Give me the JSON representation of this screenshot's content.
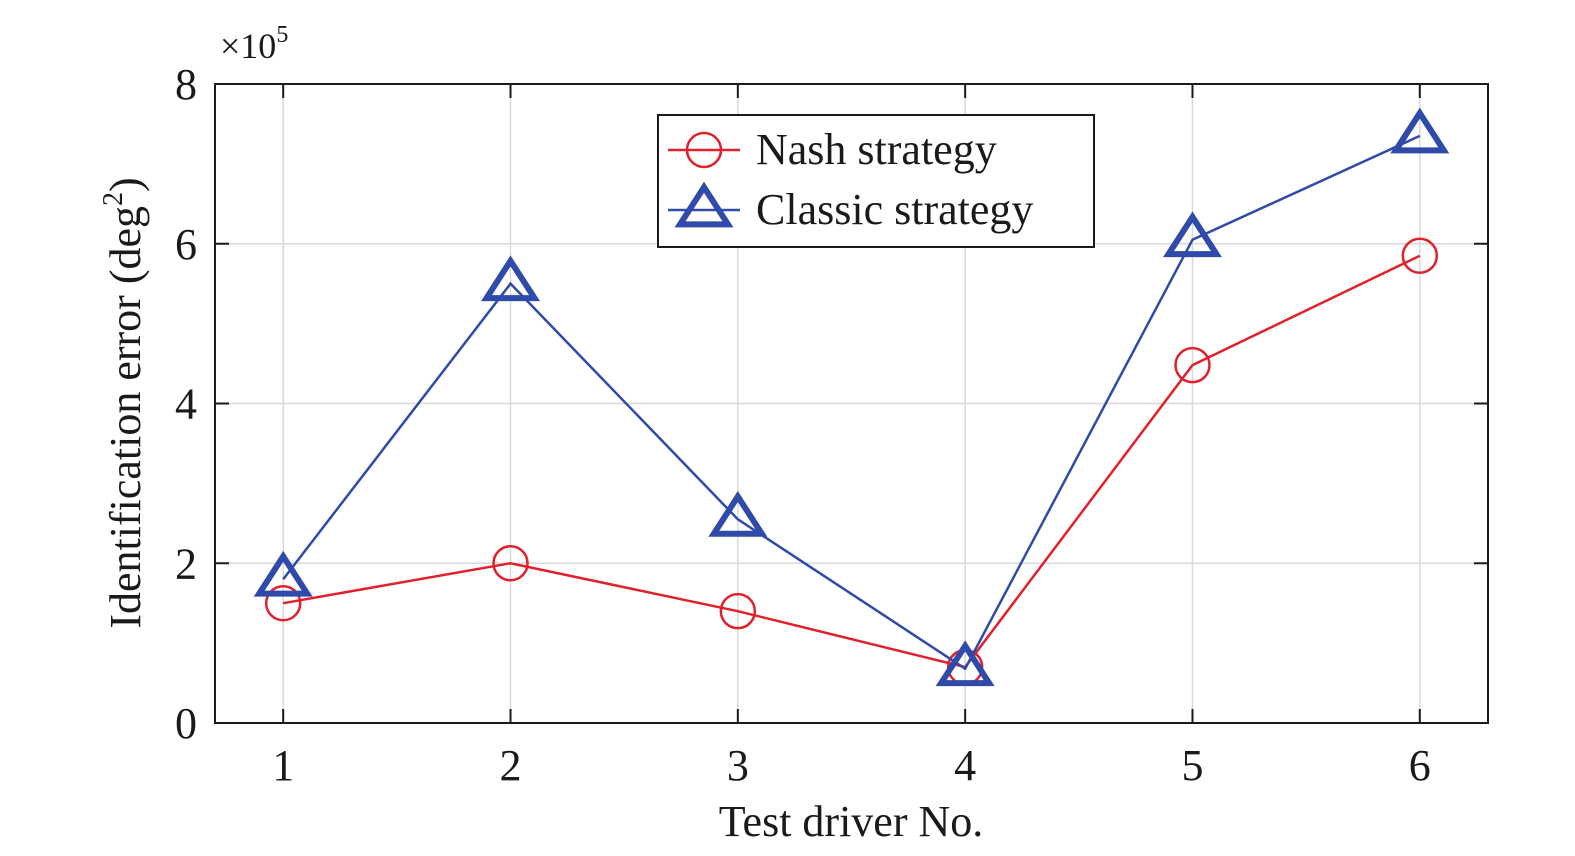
{
  "chart_data": {
    "type": "line",
    "title": "",
    "xlabel": "Test driver No.",
    "ylabel_main": "Identification error (deg",
    "ylabel_sup": "2",
    "ylabel_close": ")",
    "y_multiplier_base": "×10",
    "y_multiplier_exp": "5",
    "x": [
      1,
      2,
      3,
      4,
      5,
      6
    ],
    "x_tick_labels": [
      "1",
      "2",
      "3",
      "4",
      "5",
      "6"
    ],
    "y_ticks": [
      0,
      2,
      4,
      6,
      8
    ],
    "y_tick_labels": [
      "0",
      "2",
      "4",
      "6",
      "8"
    ],
    "xlim": [
      0.7,
      6.3
    ],
    "ylim": [
      0,
      8
    ],
    "grid": true,
    "legend_position": "top-right",
    "series": [
      {
        "name": "Nash strategy",
        "values": [
          1.5,
          2.0,
          1.4,
          0.7,
          4.48,
          5.85
        ],
        "color": "#e0202a",
        "marker": "circle"
      },
      {
        "name": "Classic strategy",
        "values": [
          1.8,
          5.5,
          2.55,
          0.68,
          6.05,
          7.35
        ],
        "color": "#2f4aa8",
        "marker": "triangle"
      }
    ]
  }
}
